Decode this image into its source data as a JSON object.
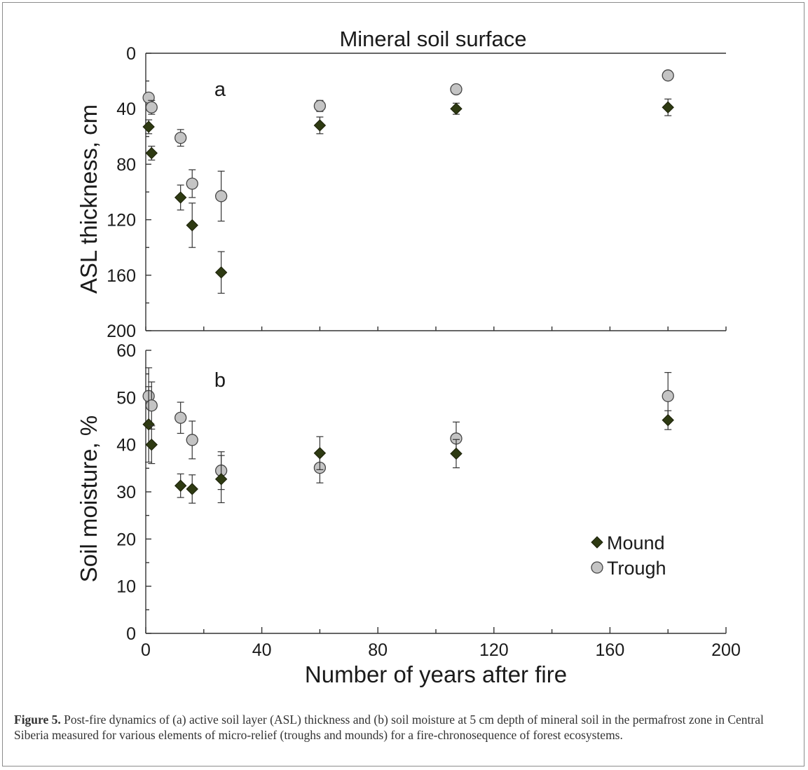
{
  "chart_data": [
    {
      "panel": "a",
      "type": "scatter",
      "title": "Mineral soil surface",
      "xlabel": "",
      "ylabel": "ASL thickness, cm",
      "xlim": [
        0,
        200
      ],
      "ylim": [
        0,
        200
      ],
      "y_inverted": true,
      "yticks": [
        0,
        40,
        80,
        120,
        160,
        200
      ],
      "series": [
        {
          "name": "Mound",
          "marker": "diamond",
          "color": "#2e3a12",
          "points": [
            {
              "x": 1,
              "y": 53,
              "err": 5
            },
            {
              "x": 2,
              "y": 72,
              "err": 5
            },
            {
              "x": 12,
              "y": 104,
              "err": 9
            },
            {
              "x": 16,
              "y": 124,
              "err": 16
            },
            {
              "x": 26,
              "y": 158,
              "err": 15
            },
            {
              "x": 60,
              "y": 52,
              "err": 6
            },
            {
              "x": 107,
              "y": 40,
              "err": 4
            },
            {
              "x": 180,
              "y": 39,
              "err": 6
            }
          ]
        },
        {
          "name": "Trough",
          "marker": "circle",
          "color": "#c4c4c4",
          "points": [
            {
              "x": 1,
              "y": 32,
              "err": 0
            },
            {
              "x": 2,
              "y": 39,
              "err": 5
            },
            {
              "x": 12,
              "y": 61,
              "err": 6
            },
            {
              "x": 16,
              "y": 94,
              "err": 10
            },
            {
              "x": 26,
              "y": 103,
              "err": 18
            },
            {
              "x": 60,
              "y": 38,
              "err": 4
            },
            {
              "x": 107,
              "y": 26,
              "err": 0
            },
            {
              "x": 180,
              "y": 16,
              "err": 0
            }
          ]
        }
      ]
    },
    {
      "panel": "b",
      "type": "scatter",
      "xlabel": "Number of years after fire",
      "ylabel": "Soil moisture, %",
      "xlim": [
        0,
        200
      ],
      "ylim": [
        0,
        60
      ],
      "xticks": [
        0,
        40,
        80,
        120,
        160,
        200
      ],
      "yticks": [
        0,
        10,
        20,
        30,
        40,
        50,
        60
      ],
      "legend_position": "bottom-right",
      "series": [
        {
          "name": "Mound",
          "marker": "diamond",
          "color": "#2e3a12",
          "points": [
            {
              "x": 1,
              "y": 44.3,
              "err": 8
            },
            {
              "x": 2,
              "y": 40,
              "err": 4
            },
            {
              "x": 12,
              "y": 31.3,
              "err": 2.5
            },
            {
              "x": 16,
              "y": 30.6,
              "err": 3
            },
            {
              "x": 26,
              "y": 32.7,
              "err": 5
            },
            {
              "x": 60,
              "y": 38.2,
              "err": 3.5
            },
            {
              "x": 107,
              "y": 38.1,
              "err": 3
            },
            {
              "x": 180,
              "y": 45.2,
              "err": 2
            }
          ]
        },
        {
          "name": "Trough",
          "marker": "circle",
          "color": "#c4c4c4",
          "points": [
            {
              "x": 1,
              "y": 50.3,
              "err": 6
            },
            {
              "x": 2,
              "y": 48.3,
              "err": 5
            },
            {
              "x": 12,
              "y": 45.7,
              "err": 3.3
            },
            {
              "x": 16,
              "y": 41,
              "err": 4
            },
            {
              "x": 26,
              "y": 34.5,
              "err": 4
            },
            {
              "x": 60,
              "y": 35.1,
              "err": 3.2
            },
            {
              "x": 107,
              "y": 41.3,
              "err": 3.5
            },
            {
              "x": 180,
              "y": 50.3,
              "err": 5
            }
          ]
        }
      ]
    }
  ],
  "caption": {
    "label": "Figure 5.",
    "text": " Post-fire dynamics of (a) active soil layer (ASL) thickness and (b) soil moisture at 5 cm depth of mineral soil in the permafrost zone in Central Siberia measured for various elements of micro-relief (troughs and mounds) for a fire-chronosequence of forest ecosystems."
  }
}
